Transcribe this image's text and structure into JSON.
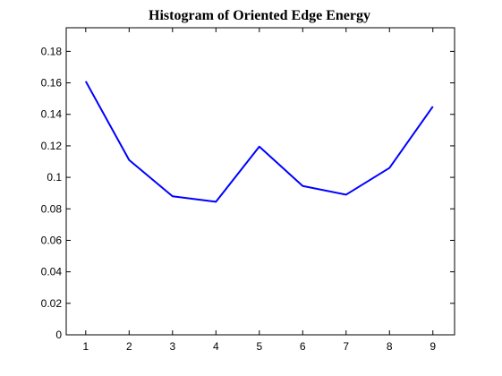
{
  "chart_data": {
    "type": "line",
    "title": "Histogram of Oriented Edge Energy",
    "xlabel": "",
    "ylabel": "",
    "x": [
      1,
      2,
      3,
      4,
      5,
      6,
      7,
      8,
      9
    ],
    "series": [
      {
        "values": [
          0.161,
          0.111,
          0.088,
          0.0845,
          0.1195,
          0.0945,
          0.089,
          0.106,
          0.145
        ],
        "color": "#0000ff"
      }
    ],
    "xlim": [
      0.55,
      9.5
    ],
    "ylim": [
      0,
      0.195
    ],
    "xticks": [
      1,
      2,
      3,
      4,
      5,
      6,
      7,
      8,
      9
    ],
    "xtick_labels": [
      "1",
      "2",
      "3",
      "4",
      "5",
      "6",
      "7",
      "8",
      "9"
    ],
    "yticks": [
      0,
      0.02,
      0.04,
      0.06,
      0.08,
      0.1,
      0.12,
      0.14,
      0.16,
      0.18
    ],
    "ytick_labels": [
      "0",
      "0.02",
      "0.04",
      "0.06",
      "0.08",
      "0.1",
      "0.12",
      "0.14",
      "0.16",
      "0.18"
    ],
    "grid": false,
    "box": true
  }
}
